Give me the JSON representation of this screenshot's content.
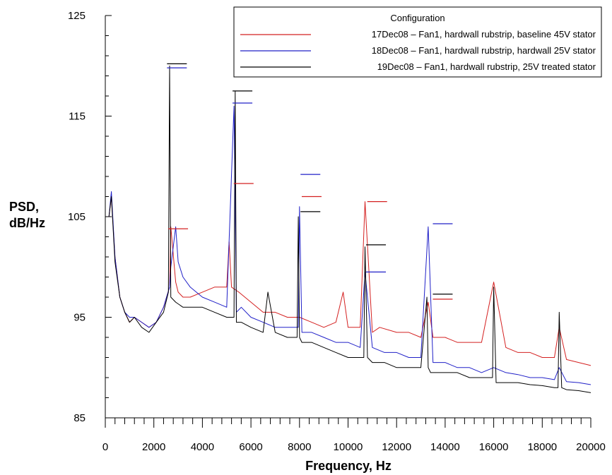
{
  "chart_data": {
    "type": "line",
    "title": "",
    "xlabel": "Frequency, Hz",
    "ylabel_line1": "PSD,",
    "ylabel_line2": "dB/Hz",
    "xlim": [
      0,
      20000
    ],
    "ylim": [
      85,
      125
    ],
    "x_ticks": [
      0,
      2000,
      4000,
      6000,
      8000,
      10000,
      12000,
      14000,
      16000,
      18000,
      20000
    ],
    "y_ticks": [
      85,
      95,
      105,
      115,
      125
    ],
    "x_tick_labels": [
      "0",
      "2000",
      "4000",
      "6000",
      "8000",
      "10000",
      "12000",
      "14000",
      "16000",
      "18000",
      "20000"
    ],
    "y_tick_labels": [
      "85",
      "95",
      "105",
      "115",
      "125"
    ],
    "grid": false,
    "legend": {
      "title": "Configuration",
      "position": "top-right"
    },
    "series": [
      {
        "name": "17Dec08 – Fan1, hardwall rubstrip, baseline 45V stator",
        "color": "#d42020",
        "x": [
          150,
          250,
          400,
          600,
          800,
          1000,
          1200,
          1500,
          1800,
          2100,
          2400,
          2650,
          2700,
          2900,
          3000,
          3200,
          3500,
          4000,
          4500,
          5000,
          5100,
          5200,
          5500,
          6000,
          6500,
          7000,
          7500,
          8000,
          8500,
          9000,
          9500,
          9800,
          10000,
          10500,
          10700,
          11000,
          11300,
          12000,
          12500,
          13000,
          13300,
          13500,
          14000,
          14500,
          15000,
          15500,
          16000,
          16500,
          17000,
          17500,
          18000,
          18500,
          18700,
          19000,
          19500,
          20000
        ],
        "values": [
          105,
          107,
          101,
          97,
          95.5,
          94.5,
          95,
          94.5,
          94,
          94.5,
          96,
          98,
          104,
          98.5,
          97.5,
          97,
          97,
          97.5,
          98,
          98,
          102.5,
          98,
          97.5,
          96.5,
          95.5,
          95.5,
          95,
          95,
          94.5,
          94,
          94.5,
          97.5,
          94,
          94,
          106.5,
          93.5,
          94,
          93.5,
          93.5,
          93,
          96.5,
          93,
          93,
          92.5,
          92.5,
          92.5,
          98.5,
          92,
          91.5,
          91.5,
          91,
          91,
          94,
          90.8,
          90.5,
          90.2
        ]
      },
      {
        "name": "18Dec08 – Fan1, hardwall rubstrip, hardwall 25V stator",
        "color": "#2020c8",
        "x": [
          150,
          250,
          400,
          600,
          800,
          1000,
          1200,
          1500,
          1800,
          2100,
          2400,
          2650,
          2700,
          2900,
          3000,
          3200,
          3500,
          4000,
          4500,
          5000,
          5300,
          5400,
          5600,
          6000,
          6500,
          7000,
          7500,
          7950,
          8000,
          8100,
          8500,
          9000,
          9500,
          10000,
          10500,
          10700,
          11000,
          11500,
          12000,
          12500,
          13000,
          13300,
          13500,
          14000,
          14500,
          15000,
          15500,
          16000,
          16500,
          17000,
          17500,
          18000,
          18500,
          18700,
          19000,
          19500,
          20000
        ],
        "values": [
          105,
          107.5,
          101,
          97,
          95.5,
          95,
          95,
          94.5,
          94,
          94.5,
          96,
          98,
          100,
          104,
          100.5,
          99,
          98,
          97,
          96.5,
          96,
          116,
          95.5,
          96,
          95,
          94.5,
          94,
          94,
          94,
          106,
          93.5,
          93.5,
          93,
          92.5,
          92.5,
          92,
          99.5,
          92,
          91.5,
          91.5,
          91,
          91,
          104,
          90.5,
          90.5,
          90,
          90,
          89.5,
          90,
          89.5,
          89.3,
          89,
          89,
          88.8,
          90,
          88.6,
          88.5,
          88.3
        ]
      },
      {
        "name": "19Dec08 – Fan1, hardwall rubstrip, 25V treated stator",
        "color": "#000000",
        "x": [
          150,
          250,
          400,
          600,
          800,
          1000,
          1200,
          1500,
          1800,
          2100,
          2400,
          2600,
          2650,
          2700,
          2900,
          3200,
          3500,
          4000,
          4500,
          5000,
          5300,
          5350,
          5400,
          5600,
          6000,
          6500,
          6700,
          7000,
          7500,
          7900,
          7950,
          8000,
          8100,
          8500,
          9000,
          9500,
          10000,
          10500,
          10650,
          10700,
          10800,
          11000,
          11500,
          12000,
          12500,
          13000,
          13250,
          13300,
          13400,
          14000,
          14500,
          15000,
          15500,
          15950,
          16000,
          16100,
          16500,
          17000,
          17500,
          18000,
          18500,
          18650,
          18700,
          18800,
          19000,
          19500,
          20000
        ],
        "values": [
          105,
          107,
          100.5,
          97,
          95.5,
          94.5,
          95,
          94,
          93.5,
          94.5,
          95.5,
          97.5,
          120,
          97,
          96.5,
          96,
          96,
          96,
          95.5,
          95,
          95,
          117.5,
          94.5,
          94.5,
          94,
          93.5,
          97.5,
          93.5,
          93,
          93,
          105,
          93,
          92.5,
          92.5,
          92,
          91.5,
          91,
          91,
          91,
          102,
          91,
          90.5,
          90.5,
          90,
          90,
          90,
          97,
          90,
          89.5,
          89.5,
          89.5,
          89,
          89,
          89,
          98,
          88.5,
          88.5,
          88.5,
          88.3,
          88.2,
          88,
          88,
          95.5,
          88,
          87.8,
          87.7,
          87.5
        ]
      }
    ],
    "tone_markers": [
      {
        "series": 0,
        "x": 3000,
        "y": 103.8
      },
      {
        "series": 0,
        "x": 5700,
        "y": 108.3
      },
      {
        "series": 0,
        "x": 8500,
        "y": 107
      },
      {
        "series": 0,
        "x": 11200,
        "y": 106.5
      },
      {
        "series": 0,
        "x": 13900,
        "y": 96.8
      },
      {
        "series": 1,
        "x": 2950,
        "y": 119.8
      },
      {
        "series": 1,
        "x": 5650,
        "y": 116.3
      },
      {
        "series": 1,
        "x": 8450,
        "y": 109.2
      },
      {
        "series": 1,
        "x": 11150,
        "y": 99.5
      },
      {
        "series": 1,
        "x": 13900,
        "y": 104.3
      },
      {
        "series": 2,
        "x": 2950,
        "y": 120.2
      },
      {
        "series": 2,
        "x": 5650,
        "y": 117.5
      },
      {
        "series": 2,
        "x": 8450,
        "y": 105.5
      },
      {
        "series": 2,
        "x": 11150,
        "y": 102.2
      },
      {
        "series": 2,
        "x": 13900,
        "y": 97.3
      }
    ]
  }
}
